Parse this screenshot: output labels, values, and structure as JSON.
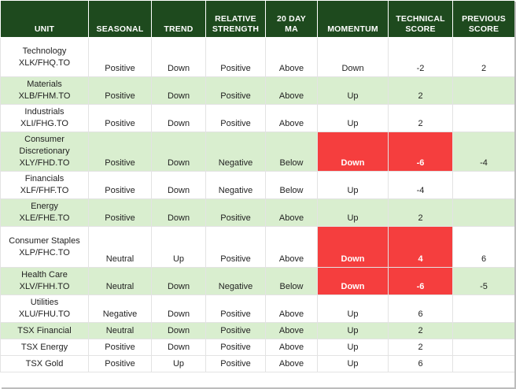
{
  "headers": {
    "unit": "UNIT",
    "seasonal": "SEASONAL",
    "trend": "TREND",
    "rel_strength_1": "RELATIVE",
    "rel_strength_2": "STRENGTH",
    "ma_1": "20 DAY",
    "ma_2": "MA",
    "momentum": "MOMENTUM",
    "tech_1": "TECHNICAL",
    "tech_2": "SCORE",
    "prev_1": "PREVIOUS",
    "prev_2": "SCORE"
  },
  "rows": [
    {
      "unit_1": "Technology",
      "unit_2": "XLK/FHQ.TO",
      "seasonal": "Positive",
      "trend": "Down",
      "rel": "Positive",
      "ma": "Above",
      "momentum": "Down",
      "tech": "-2",
      "prev": "2"
    },
    {
      "unit_1": "Materials",
      "unit_2": "XLB/FHM.TO",
      "seasonal": "Positive",
      "trend": "Down",
      "rel": "Positive",
      "ma": "Above",
      "momentum": "Up",
      "tech": "2",
      "prev": ""
    },
    {
      "unit_1": "Industrials",
      "unit_2": "XLI/FHG.TO",
      "seasonal": "Positive",
      "trend": "Down",
      "rel": "Positive",
      "ma": "Above",
      "momentum": "Up",
      "tech": "2",
      "prev": ""
    },
    {
      "unit_1": "Consumer",
      "unit_2": "Discretionary",
      "unit_3": "XLY/FHD.TO",
      "seasonal": "Positive",
      "trend": "Down",
      "rel": "Negative",
      "ma": "Below",
      "momentum": "Down",
      "tech": "-6",
      "prev": "-4"
    },
    {
      "unit_1": "Financials",
      "unit_2": "XLF/FHF.TO",
      "seasonal": "Positive",
      "trend": "Down",
      "rel": "Negative",
      "ma": "Below",
      "momentum": "Up",
      "tech": "-4",
      "prev": ""
    },
    {
      "unit_1": "Energy",
      "unit_2": "XLE/FHE.TO",
      "seasonal": "Positive",
      "trend": "Down",
      "rel": "Positive",
      "ma": "Above",
      "momentum": "Up",
      "tech": "2",
      "prev": ""
    },
    {
      "unit_1": "Consumer Staples",
      "unit_2": "XLP/FHC.TO",
      "seasonal": "Neutral",
      "trend": "Up",
      "rel": "Positive",
      "ma": "Above",
      "momentum": "Down",
      "tech": "4",
      "prev": "6"
    },
    {
      "unit_1": "Health Care",
      "unit_2": "XLV/FHH.TO",
      "seasonal": "Neutral",
      "trend": "Down",
      "rel": "Negative",
      "ma": "Below",
      "momentum": "Down",
      "tech": "-6",
      "prev": "-5"
    },
    {
      "unit_1": "Utilities",
      "unit_2": "XLU/FHU.TO",
      "seasonal": "Negative",
      "trend": "Down",
      "rel": "Positive",
      "ma": "Above",
      "momentum": "Up",
      "tech": "6",
      "prev": ""
    },
    {
      "unit_1": "TSX Financial",
      "seasonal": "Neutral",
      "trend": "Down",
      "rel": "Positive",
      "ma": "Above",
      "momentum": "Up",
      "tech": "2",
      "prev": ""
    },
    {
      "unit_1": "TSX Energy",
      "seasonal": "Positive",
      "trend": "Down",
      "rel": "Positive",
      "ma": "Above",
      "momentum": "Up",
      "tech": "2",
      "prev": ""
    },
    {
      "unit_1": "TSX Gold",
      "seasonal": "Positive",
      "trend": "Up",
      "rel": "Positive",
      "ma": "Above",
      "momentum": "Up",
      "tech": "6",
      "prev": ""
    }
  ],
  "colors": {
    "header_bg": "#1e4a1e",
    "band_green": "#d9eecf",
    "alert_red": "#f53e3e"
  }
}
